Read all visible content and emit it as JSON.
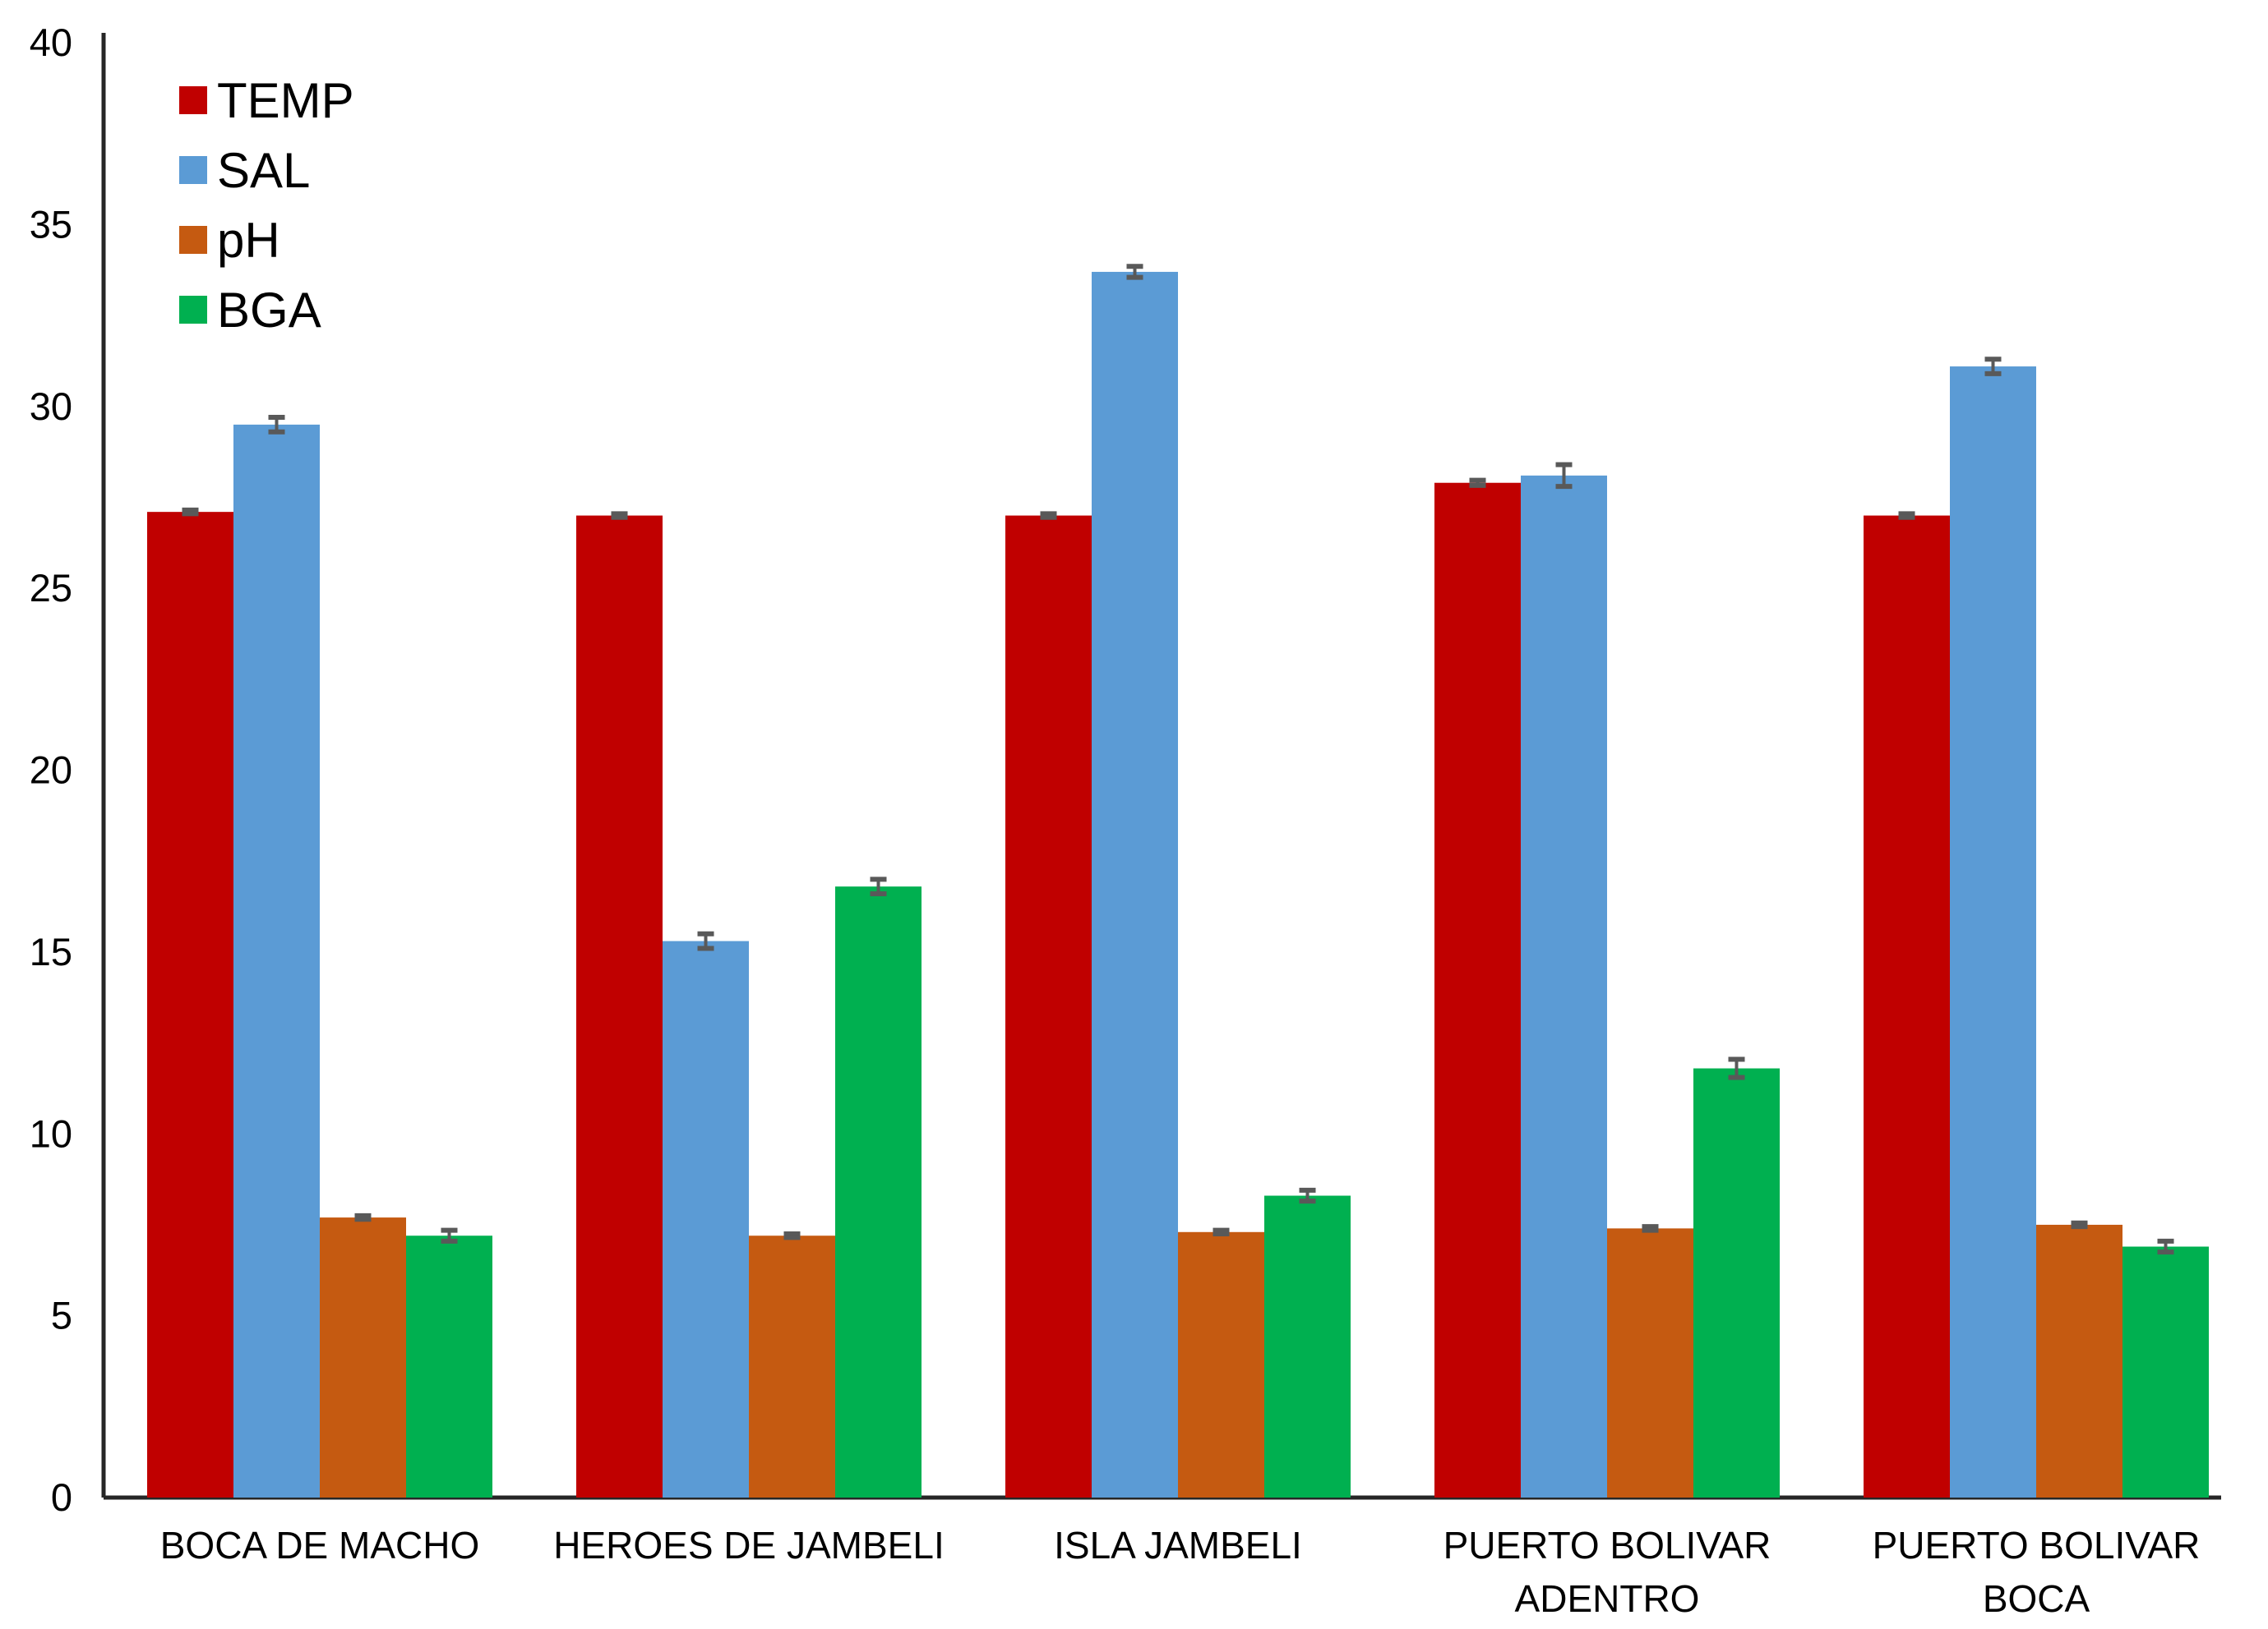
{
  "chart_data": {
    "type": "bar",
    "title": "",
    "xlabel": "",
    "ylabel": "",
    "categories": [
      "BOCA DE MACHO",
      "HEROES DE JAMBELI",
      "ISLA JAMBELI",
      "PUERTO BOLIVAR ADENTRO",
      "PUERTO BOLIVAR BOCA"
    ],
    "category_lines": [
      [
        "BOCA DE MACHO"
      ],
      [
        "HEROES DE JAMBELI"
      ],
      [
        "ISLA JAMBELI"
      ],
      [
        "PUERTO BOLIVAR",
        "ADENTRO"
      ],
      [
        "PUERTO BOLIVAR",
        "BOCA"
      ]
    ],
    "series": [
      {
        "name": "TEMP",
        "color": "#C00000",
        "values": [
          27.1,
          27.0,
          27.0,
          27.9,
          27.0
        ],
        "errors": [
          0.05,
          0.05,
          0.05,
          0.07,
          0.05
        ]
      },
      {
        "name": "SAL",
        "color": "#5B9BD5",
        "values": [
          29.5,
          15.3,
          33.7,
          28.1,
          31.1
        ],
        "errors": [
          0.2,
          0.2,
          0.15,
          0.3,
          0.2
        ]
      },
      {
        "name": "pH",
        "color": "#C55A11",
        "values": [
          7.7,
          7.2,
          7.3,
          7.4,
          7.5
        ],
        "errors": [
          0.05,
          0.05,
          0.05,
          0.05,
          0.05
        ]
      },
      {
        "name": "BGA",
        "color": "#00B050",
        "values": [
          7.2,
          16.8,
          8.3,
          11.8,
          6.9
        ],
        "errors": [
          0.15,
          0.2,
          0.15,
          0.25,
          0.15
        ]
      }
    ],
    "ylim": [
      0,
      40
    ],
    "yticks": [
      0,
      5,
      10,
      15,
      20,
      25,
      30,
      35,
      40
    ],
    "grid": false,
    "legend_position": "top-left",
    "error_bar_color": "#595959",
    "axis_color": "#262626",
    "text_color": "#000000"
  }
}
